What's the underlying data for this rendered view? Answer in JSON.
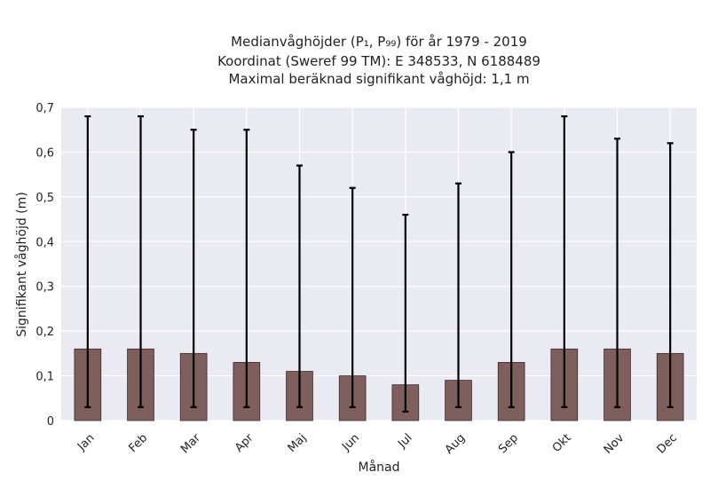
{
  "chart_data": {
    "type": "bar",
    "title_lines": [
      "Medianvåghöjder (P₁, P₉₉) för år 1979 - 2019",
      "Koordinat (Sweref 99 TM): E 348533, N 6188489",
      "Maximal beräknad signifikant våghöjd: 1,1 m"
    ],
    "xlabel": "Månad",
    "ylabel": "Signifikant våghöjd (m)",
    "categories": [
      "Jan",
      "Feb",
      "Mar",
      "Apr",
      "Maj",
      "Jun",
      "Jul",
      "Aug",
      "Sep",
      "Okt",
      "Nov",
      "Dec"
    ],
    "values": [
      0.16,
      0.16,
      0.15,
      0.13,
      0.11,
      0.1,
      0.08,
      0.09,
      0.13,
      0.16,
      0.16,
      0.15
    ],
    "error_low": [
      0.03,
      0.03,
      0.03,
      0.03,
      0.03,
      0.03,
      0.02,
      0.03,
      0.03,
      0.03,
      0.03,
      0.03
    ],
    "error_high": [
      0.68,
      0.68,
      0.65,
      0.65,
      0.57,
      0.52,
      0.46,
      0.53,
      0.6,
      0.68,
      0.63,
      0.62
    ],
    "ylim": [
      0,
      0.7
    ],
    "yticks": [
      0,
      0.1,
      0.2,
      0.3,
      0.4,
      0.5,
      0.6,
      0.7
    ],
    "ytick_labels": [
      "0",
      "0,1",
      "0,2",
      "0,3",
      "0,4",
      "0,5",
      "0,6",
      "0,7"
    ],
    "grid": true,
    "colors": {
      "bar": "#7f5e5e",
      "bar_edge": "#3a2a2a",
      "error": "#000000",
      "plot_bg": "#eaeaf2",
      "grid": "#ffffff"
    }
  }
}
